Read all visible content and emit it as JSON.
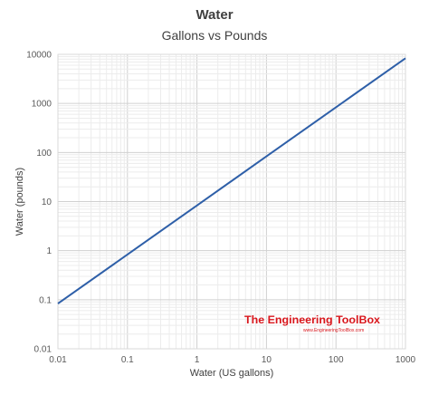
{
  "chart_data": {
    "type": "line",
    "title": "Water",
    "subtitle": "Gallons vs Pounds",
    "xlabel": "Water (US gallons)",
    "ylabel": "Water (pounds)",
    "xscale": "log",
    "yscale": "log",
    "xlim": [
      0.01,
      1000
    ],
    "ylim": [
      0.01,
      10000
    ],
    "x_ticks": [
      "0.01",
      "0.1",
      "1",
      "10",
      "100",
      "1000"
    ],
    "y_ticks": [
      "0.01",
      "0.1",
      "1",
      "10",
      "100",
      "1000",
      "10000"
    ],
    "grid": true,
    "series": [
      {
        "x": [
          0.01,
          0.1,
          1,
          10,
          100,
          1000
        ],
        "y": [
          0.0834,
          0.834,
          8.34,
          83.4,
          834,
          8340
        ],
        "color": "#2e5fa8"
      }
    ],
    "watermark": {
      "name": "The Engineering ToolBox",
      "url": "www.EngineeringToolBox.com",
      "color": "#d9161c"
    }
  }
}
